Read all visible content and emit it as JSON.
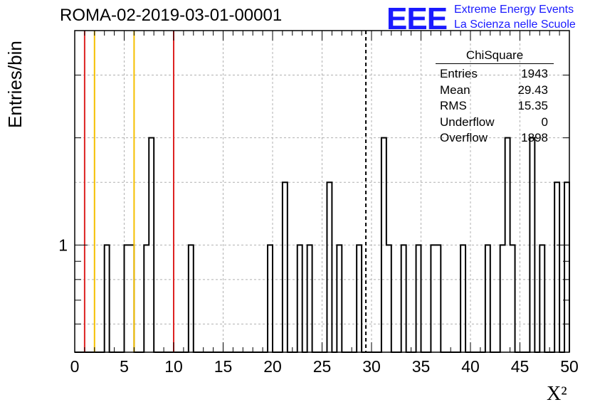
{
  "chart_data": {
    "type": "histogram",
    "title": "ROMA-02-2019-03-01-00001",
    "xlabel": "X²",
    "ylabel": "Entries/bin",
    "xlim": [
      0,
      50
    ],
    "y_scale": "log",
    "x_ticks": [
      0,
      5,
      10,
      15,
      20,
      25,
      30,
      35,
      40,
      45,
      50
    ],
    "y_ticks": [
      1
    ],
    "grid": true,
    "bin_width": 0.5,
    "bins": [
      {
        "x": 3.0,
        "count": 1
      },
      {
        "x": 5.0,
        "count": 1
      },
      {
        "x": 5.5,
        "count": 1
      },
      {
        "x": 7.0,
        "count": 1
      },
      {
        "x": 7.5,
        "count": 2
      },
      {
        "x": 11.5,
        "count": 1
      },
      {
        "x": 19.5,
        "count": 1
      },
      {
        "x": 21.0,
        "count": 1.5
      },
      {
        "x": 22.5,
        "count": 1
      },
      {
        "x": 23.5,
        "count": 1
      },
      {
        "x": 25.5,
        "count": 1.5
      },
      {
        "x": 26.5,
        "count": 1
      },
      {
        "x": 28.5,
        "count": 1
      },
      {
        "x": 31.0,
        "count": 2
      },
      {
        "x": 31.5,
        "count": 1
      },
      {
        "x": 33.0,
        "count": 1
      },
      {
        "x": 34.5,
        "count": 1
      },
      {
        "x": 36.0,
        "count": 1
      },
      {
        "x": 36.5,
        "count": 1
      },
      {
        "x": 39.0,
        "count": 1
      },
      {
        "x": 41.5,
        "count": 1
      },
      {
        "x": 43.0,
        "count": 1
      },
      {
        "x": 43.5,
        "count": 2
      },
      {
        "x": 44.0,
        "count": 1
      },
      {
        "x": 46.0,
        "count": 2
      },
      {
        "x": 47.0,
        "count": 1
      },
      {
        "x": 48.5,
        "count": 1.5
      },
      {
        "x": 49.5,
        "count": 1.5
      }
    ],
    "reference_lines": [
      {
        "x": 1.0,
        "color": "#dd2222",
        "style": "solid"
      },
      {
        "x": 2.0,
        "color": "#f5c000",
        "style": "solid"
      },
      {
        "x": 6.0,
        "color": "#f5c000",
        "style": "solid"
      },
      {
        "x": 10.0,
        "color": "#dd2222",
        "style": "solid"
      },
      {
        "x": 29.43,
        "color": "#000000",
        "style": "dashed"
      }
    ],
    "stats_box": {
      "title": "ChiSquare",
      "rows": [
        {
          "label": "Entries",
          "value": "1943"
        },
        {
          "label": "Mean",
          "value": "29.43"
        },
        {
          "label": "RMS",
          "value": "15.35"
        },
        {
          "label": "Underflow",
          "value": "0"
        },
        {
          "label": "Overflow",
          "value": "1898"
        }
      ]
    }
  },
  "logo": {
    "mark": "EEE",
    "line1": "Extreme Energy Events",
    "line2": "La Scienza nelle Scuole"
  },
  "colors": {
    "logo_blue": "#1a1aff",
    "grid": "#b0b0b0"
  }
}
